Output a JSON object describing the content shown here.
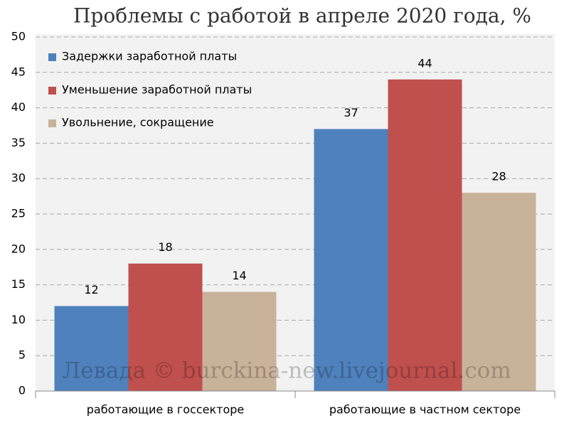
{
  "chart_data": {
    "type": "bar",
    "title": "Проблемы с работой в апреле 2020 года, %",
    "categories": [
      "работающие в госсекторе",
      "работающие в частном секторе"
    ],
    "series": [
      {
        "name": "Задержки заработной платы",
        "color": "#4f81bd",
        "values": [
          12,
          37
        ]
      },
      {
        "name": "Уменьшение заработной платы",
        "color": "#c0504d",
        "values": [
          18,
          44
        ]
      },
      {
        "name": "Увольнение, сокращение",
        "color": "#c9b29a",
        "values": [
          14,
          28
        ]
      }
    ],
    "ylim": [
      0,
      50
    ],
    "yticks": [
      0,
      5,
      10,
      15,
      20,
      25,
      30,
      35,
      40,
      45,
      50
    ],
    "grid": true,
    "legend": "top-left",
    "watermark": "Левада © burckina-new.livejournal.com"
  }
}
